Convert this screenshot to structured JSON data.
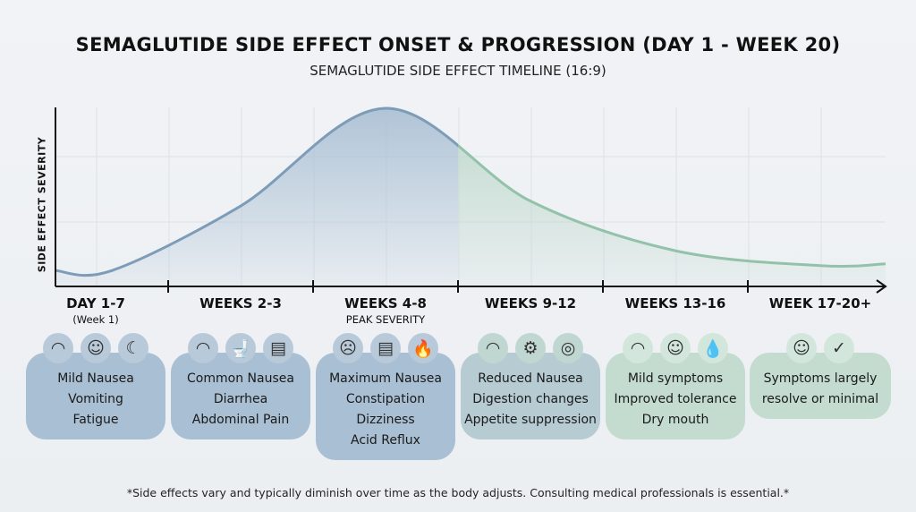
{
  "title": "SEMAGLUTIDE SIDE EFFECT ONSET & PROGRESSION (DAY 1 - WEEK 20)",
  "subtitle": "SEMAGLUTIDE SIDE EFFECT TIMELINE (16:9)",
  "footnote": "*Side effects vary and typically diminish over time as the body adjusts. Consulting medical professionals is essential.*",
  "colors": {
    "blue": "#a9bfd3",
    "green": "#b9d6c8",
    "line_blue": "#7d9cb8",
    "line_green": "#93c2aa"
  },
  "chart_data": {
    "type": "area",
    "ylabel": "SIDE EFFECT SEVERITY",
    "xlabel": "",
    "categories": [
      "DAY 1-7",
      "WEEKS 2-3",
      "WEEKS 4-8",
      "WEEKS 9-12",
      "WEEKS 13-16",
      "WEEK 17-20+"
    ],
    "values": [
      0.02,
      0.41,
      1.0,
      0.44,
      0.14,
      0.05
    ],
    "grid": true,
    "legend": "none"
  },
  "phases": [
    {
      "label": "DAY 1-7",
      "sub": "(Week 1)",
      "icons": [
        "stomach-icon",
        "head-icon",
        "moon-sleep-icon"
      ],
      "glyphs": [
        "◠",
        "☺",
        "☾"
      ],
      "items": [
        "Mild Nausea",
        "Vomiting",
        "Fatigue"
      ],
      "tone": "blue"
    },
    {
      "label": "WEEKS 2-3",
      "sub": "",
      "icons": [
        "stomach-icon",
        "toilet-icon",
        "intestine-icon"
      ],
      "glyphs": [
        "◠",
        "🚽",
        "▤"
      ],
      "items": [
        "Common Nausea",
        "Diarrhea",
        "Abdominal Pain"
      ],
      "tone": "blue"
    },
    {
      "label": "WEEKS 4-8",
      "sub": "PEAK SEVERITY",
      "icons": [
        "vomiting-face-icon",
        "intestine-icon",
        "fire-icon"
      ],
      "glyphs": [
        "☹",
        "▤",
        "🔥"
      ],
      "items": [
        "Maximum Nausea",
        "Constipation",
        "Dizziness",
        "Acid Reflux"
      ],
      "tone": "blue"
    },
    {
      "label": "WEEKS 9-12",
      "sub": "",
      "icons": [
        "stomach-icon",
        "gears-icon",
        "plate-cutlery-icon"
      ],
      "glyphs": [
        "◠",
        "⚙",
        "◎"
      ],
      "items": [
        "Reduced Nausea",
        "Digestion changes",
        "Appetite suppression"
      ],
      "tone": "mix"
    },
    {
      "label": "WEEKS 13-16",
      "sub": "",
      "icons": [
        "stomach-icon",
        "smiley-icon",
        "water-drop-icon"
      ],
      "glyphs": [
        "◠",
        "☺",
        "💧"
      ],
      "items": [
        "Mild symptoms",
        "Improved tolerance",
        "Dry mouth"
      ],
      "tone": "green"
    },
    {
      "label": "WEEK 17-20+",
      "sub": "",
      "icons": [
        "happy-person-icon",
        "checkmark-icon"
      ],
      "glyphs": [
        "☺",
        "✓"
      ],
      "items": [
        "Symptoms largely",
        "resolve or minimal"
      ],
      "tone": "green"
    }
  ]
}
